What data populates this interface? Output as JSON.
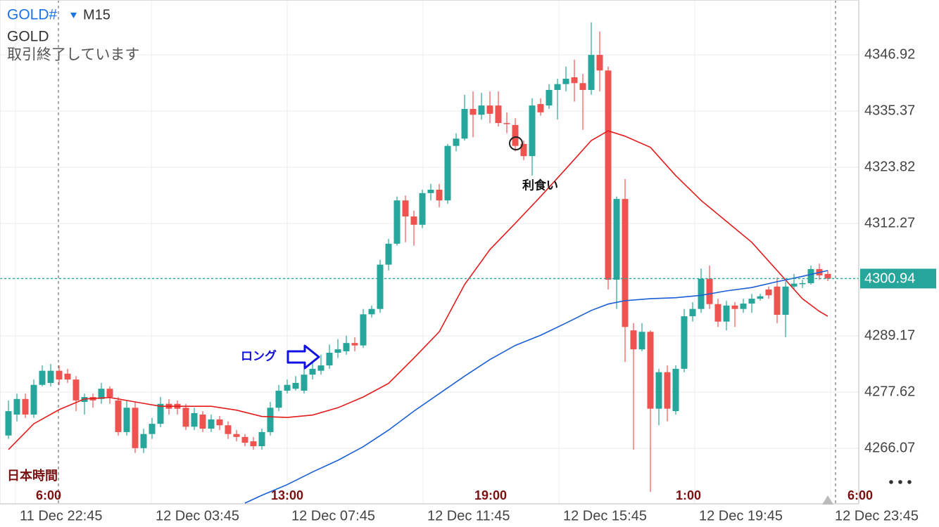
{
  "chart_data": {
    "type": "candlestick",
    "symbol": "GOLD#",
    "timeframe": "M15",
    "description": "GOLD",
    "status": "取引終了しています",
    "local_time_caption": "日本時間",
    "up_color": "#26a69a",
    "down_color": "#ef5350",
    "open": [
      4268.7,
      4273.0,
      4276.2,
      4273.0,
      4279.1,
      4279.5,
      4282.0,
      4281.4,
      4280.2,
      4275.6,
      4276.6,
      4276.2,
      4278.3,
      4275.9,
      4269.4,
      4274.4,
      4266.1,
      4269.0,
      4271.1,
      4275.2,
      4275.2,
      4274.4,
      4270.5,
      4273.0,
      4270.1,
      4272.0,
      4270.8,
      4269.0,
      4268.4,
      4267.5,
      4266.5,
      4269.4,
      4274.4,
      4277.9,
      4278.3,
      4277.9,
      4281.2,
      4282.0,
      4283.1,
      4285.7,
      4286.0,
      4287.7,
      4287.2,
      4293.6,
      4294.7,
      4303.8,
      4308.1,
      4317.0,
      4313.7,
      4312.0,
      4318.5,
      4319.2,
      4317.0,
      4328.2,
      4329.7,
      4335.8,
      4334.6,
      4336.5,
      4336.5,
      4332.9,
      4332.5,
      4328.6,
      4326.1,
      4336.8,
      4336.5,
      4339.7,
      4340.9,
      4342.3,
      4341.1,
      4339.7,
      4346.9,
      4343.7,
      4300.7,
      4317.3,
      4290.3,
      4286.4,
      4290.0,
      4274.2,
      4281.7,
      4273.7,
      4282.4,
      4293.2,
      4294.7,
      4300.9,
      4295.7,
      4292.1,
      4295.4,
      4294.7,
      4295.8,
      4296.8,
      4298.7,
      4299.3,
      4293.5,
      4299.3,
      4299.9,
      4300.0,
      4302.9,
      4301.9
    ],
    "high": [
      4275.9,
      4277.3,
      4277.3,
      4280.2,
      4283.1,
      4283.4,
      4283.1,
      4282.4,
      4280.9,
      4277.3,
      4277.3,
      4279.5,
      4278.8,
      4276.6,
      4275.9,
      4275.6,
      4270.1,
      4272.3,
      4276.6,
      4276.2,
      4275.9,
      4275.2,
      4274.4,
      4273.7,
      4273.0,
      4272.7,
      4271.6,
      4269.8,
      4269.0,
      4268.4,
      4270.1,
      4275.6,
      4279.1,
      4280.2,
      4280.9,
      4282.4,
      4283.8,
      4285.3,
      4287.4,
      4288.5,
      4289.2,
      4288.9,
      4294.7,
      4295.4,
      4304.8,
      4309.1,
      4317.8,
      4318.0,
      4314.9,
      4319.2,
      4320.4,
      4320.4,
      4328.6,
      4330.8,
      4338.7,
      4339.4,
      4339.1,
      4339.4,
      4339.4,
      4335.1,
      4333.9,
      4329.3,
      4338.0,
      4338.0,
      4340.9,
      4342.0,
      4344.5,
      4345.9,
      4343.0,
      4353.6,
      4351.7,
      4344.5,
      4317.8,
      4321.4,
      4291.8,
      4291.8,
      4290.3,
      4282.4,
      4283.1,
      4283.1,
      4294.7,
      4296.1,
      4303.0,
      4303.6,
      4296.8,
      4296.4,
      4296.1,
      4296.8,
      4297.8,
      4297.8,
      4299.3,
      4301.2,
      4300.4,
      4301.9,
      4300.7,
      4303.6,
      4304.0,
      4302.6
    ],
    "low": [
      4268.0,
      4271.6,
      4272.3,
      4272.3,
      4278.8,
      4278.8,
      4279.1,
      4279.5,
      4273.7,
      4273.0,
      4274.4,
      4275.2,
      4275.2,
      4268.7,
      4268.7,
      4265.1,
      4265.1,
      4268.0,
      4270.4,
      4273.0,
      4273.0,
      4269.8,
      4269.8,
      4269.4,
      4269.4,
      4269.8,
      4268.0,
      4267.5,
      4266.5,
      4265.8,
      4265.8,
      4268.7,
      4273.7,
      4277.3,
      4277.9,
      4277.3,
      4280.2,
      4281.2,
      4282.4,
      4284.6,
      4285.3,
      4286.0,
      4286.7,
      4292.9,
      4293.9,
      4302.6,
      4307.7,
      4308.4,
      4307.7,
      4311.3,
      4317.0,
      4315.6,
      4316.3,
      4327.1,
      4329.3,
      4330.0,
      4333.6,
      4332.9,
      4332.2,
      4330.8,
      4327.1,
      4325.3,
      4322.1,
      4334.4,
      4335.8,
      4333.6,
      4339.4,
      4337.3,
      4331.5,
      4338.7,
      4339.4,
      4298.7,
      4294.7,
      4283.8,
      4265.8,
      4286.0,
      4257.1,
      4270.8,
      4271.6,
      4273.0,
      4281.7,
      4292.1,
      4293.9,
      4294.7,
      4291.0,
      4290.3,
      4291.0,
      4293.9,
      4293.9,
      4296.4,
      4296.8,
      4291.8,
      4288.9,
      4298.7,
      4299.0,
      4299.7,
      4300.7,
      4300.4
    ],
    "close": [
      4273.7,
      4276.2,
      4273.0,
      4279.1,
      4282.0,
      4282.0,
      4280.2,
      4280.2,
      4275.9,
      4276.6,
      4275.9,
      4278.3,
      4276.6,
      4269.4,
      4274.4,
      4266.1,
      4269.0,
      4271.1,
      4275.2,
      4274.2,
      4274.2,
      4270.5,
      4273.3,
      4270.1,
      4272.0,
      4270.8,
      4269.0,
      4268.4,
      4267.2,
      4266.5,
      4269.4,
      4274.4,
      4277.9,
      4279.1,
      4279.5,
      4281.2,
      4282.4,
      4283.1,
      4285.7,
      4286.4,
      4287.7,
      4287.2,
      4293.6,
      4294.7,
      4303.8,
      4308.1,
      4317.0,
      4313.7,
      4312.0,
      4318.5,
      4319.2,
      4317.0,
      4328.2,
      4329.7,
      4335.8,
      4334.6,
      4336.5,
      4334.8,
      4332.9,
      4332.8,
      4328.2,
      4326.1,
      4336.5,
      4335.1,
      4339.7,
      4340.9,
      4342.0,
      4341.1,
      4339.7,
      4346.9,
      4343.7,
      4300.7,
      4317.3,
      4291.0,
      4286.4,
      4290.0,
      4274.2,
      4281.7,
      4274.2,
      4282.4,
      4293.2,
      4294.7,
      4300.9,
      4295.7,
      4292.1,
      4295.4,
      4294.7,
      4295.8,
      4296.8,
      4297.3,
      4297.5,
      4293.5,
      4299.3,
      4299.9,
      4300.0,
      4302.9,
      4301.6,
      4300.94
    ],
    "lines": [
      {
        "color": "#e31b1b",
        "x": [
          0,
          3,
          6,
          9,
          12,
          15,
          18,
          21,
          24,
          27,
          30,
          33,
          36,
          39,
          42,
          45,
          48,
          51,
          54,
          57,
          60,
          63,
          66,
          69,
          71,
          73,
          76,
          79,
          82,
          85,
          88,
          91,
          94,
          96,
          97
        ],
        "values": [
          4265.8,
          4271.1,
          4274.0,
          4276.2,
          4276.5,
          4275.6,
          4274.7,
          4274.7,
          4274.7,
          4273.9,
          4272.6,
          4272.4,
          4272.9,
          4274.4,
          4276.6,
          4279.4,
          4284.6,
          4290.0,
          4299.7,
          4306.9,
          4312.3,
          4317.8,
          4323.5,
          4329.3,
          4331.3,
          4330.2,
          4327.9,
          4322.1,
          4317.0,
          4312.7,
          4308.4,
          4302.6,
          4296.8,
          4294.2,
          4293.2
        ]
      },
      {
        "color": "#1a5fd6",
        "x": [
          28,
          30,
          33,
          36,
          39,
          42,
          45,
          48,
          51,
          54,
          57,
          60,
          63,
          66,
          69,
          71,
          73,
          76,
          79,
          82,
          85,
          88,
          91,
          94,
          97
        ],
        "values": [
          4254.8,
          4256.4,
          4258.6,
          4261.2,
          4263.6,
          4266.4,
          4269.8,
          4273.7,
          4277.3,
          4280.9,
          4284.3,
          4287.2,
          4289.3,
          4291.8,
          4294.4,
          4295.7,
          4296.4,
          4296.8,
          4297.0,
          4297.5,
          4298.4,
          4299.1,
          4300.3,
          4301.4,
          4302.6
        ]
      }
    ],
    "ylim": [
      4254.66,
      4358.18
    ],
    "yticks": [
      4266.07,
      4277.62,
      4289.17,
      4300.94,
      4312.27,
      4323.82,
      4335.37,
      4346.92
    ],
    "last_price": 4300.94,
    "time_labels": [
      "11 Dec 22:45",
      "12 Dec 03:45",
      "12 Dec 07:45",
      "12 Dec 11:45",
      "12 Dec 15:45",
      "12 Dec 19:45",
      "12 Dec 23:45"
    ],
    "local_time_labels": [
      "6:00",
      "13:00",
      "19:00",
      "1:00",
      "6:00"
    ],
    "annotations": [
      "ロング",
      "利食い"
    ]
  }
}
